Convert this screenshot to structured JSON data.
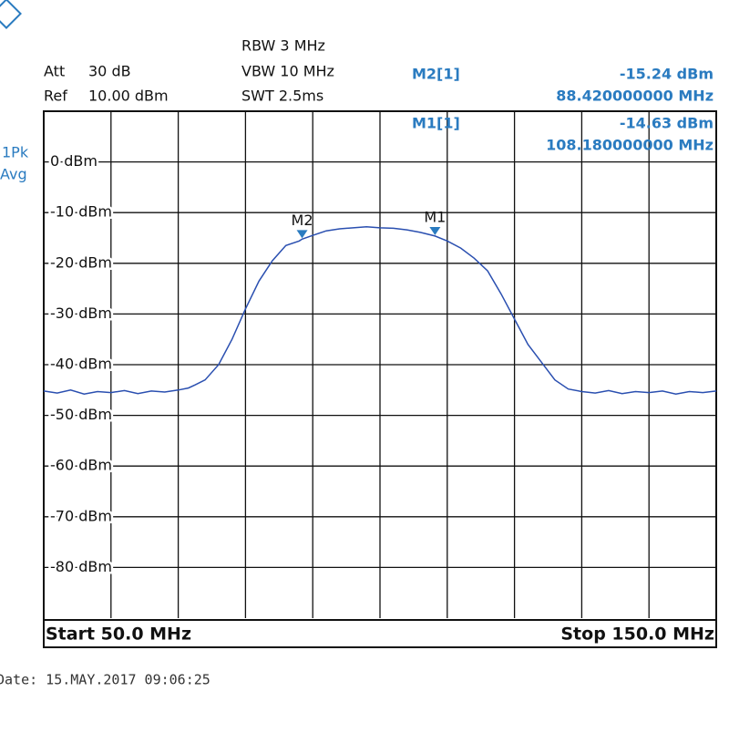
{
  "header": {
    "att_label": "Att",
    "att": "30 dB",
    "ref_label": "Ref",
    "ref": "10.00 dBm",
    "rbw": "RBW 3 MHz",
    "vbw": "VBW 10 MHz",
    "swt": "SWT 2.5ms",
    "detector_1": "1Pk",
    "detector_2": "Avg"
  },
  "chart_data": {
    "type": "line",
    "color": "#2a4fb0",
    "x": [
      50,
      52,
      54,
      56,
      58,
      60,
      62,
      64,
      66,
      68,
      70,
      71.5,
      72.5,
      74,
      76,
      78,
      80,
      82,
      84,
      86,
      88,
      88.42,
      90,
      92,
      94,
      96,
      98,
      100,
      102,
      104,
      106,
      108.18,
      110,
      112,
      114,
      116,
      118,
      120,
      122,
      124,
      126,
      128,
      130,
      132,
      134,
      136,
      138,
      140,
      142,
      144,
      146,
      148,
      150
    ],
    "values": [
      -45.2,
      -45.6,
      -45.0,
      -45.8,
      -45.3,
      -45.5,
      -45.1,
      -45.7,
      -45.2,
      -45.4,
      -45.0,
      -44.6,
      -44.0,
      -43.0,
      -40.0,
      -35.0,
      -29.0,
      -23.5,
      -19.5,
      -16.5,
      -15.6,
      -15.24,
      -14.5,
      -13.6,
      -13.2,
      -13.0,
      -12.8,
      -13.0,
      -13.1,
      -13.4,
      -13.9,
      -14.63,
      -15.6,
      -17.0,
      -19.0,
      -21.5,
      -26.0,
      -31.0,
      -36.0,
      -39.5,
      -43.0,
      -44.8,
      -45.3,
      -45.6,
      -45.1,
      -45.7,
      -45.3,
      -45.5,
      -45.2,
      -45.8,
      -45.3,
      -45.5,
      -45.2
    ],
    "xlim": [
      50,
      150
    ],
    "xticks": [
      60,
      70,
      80,
      90,
      100,
      110,
      120,
      130,
      140
    ],
    "ylim": [
      -90,
      10
    ],
    "yticks": [
      {
        "value": 0,
        "label": "0 dBm"
      },
      {
        "value": -10,
        "label": "-10 dBm"
      },
      {
        "value": -20,
        "label": "-20 dBm"
      },
      {
        "value": -30,
        "label": "-30 dBm"
      },
      {
        "value": -40,
        "label": "-40 dBm"
      },
      {
        "value": -50,
        "label": "-50 dBm"
      },
      {
        "value": -60,
        "label": "-60 dBm"
      },
      {
        "value": -70,
        "label": "-70 dBm"
      },
      {
        "value": -80,
        "label": "-80 dBm"
      }
    ],
    "grid": true,
    "markers": [
      {
        "name": "M2",
        "readout": "M2[1]",
        "x": 88.42,
        "y": -15.24,
        "y_label": "-15.24 dBm",
        "x_label": "88.420000000 MHz"
      },
      {
        "name": "M1",
        "readout": "M1[1]",
        "x": 108.18,
        "y": -14.63,
        "y_label": "-14.63 dBm",
        "x_label": "108.180000000 MHz"
      }
    ],
    "marker_color": "#2a7bc0",
    "start": "Start 50.0 MHz",
    "stop": "Stop 150.0 MHz"
  },
  "footer": {
    "date": "Date: 15.MAY.2017  09:06:25"
  }
}
